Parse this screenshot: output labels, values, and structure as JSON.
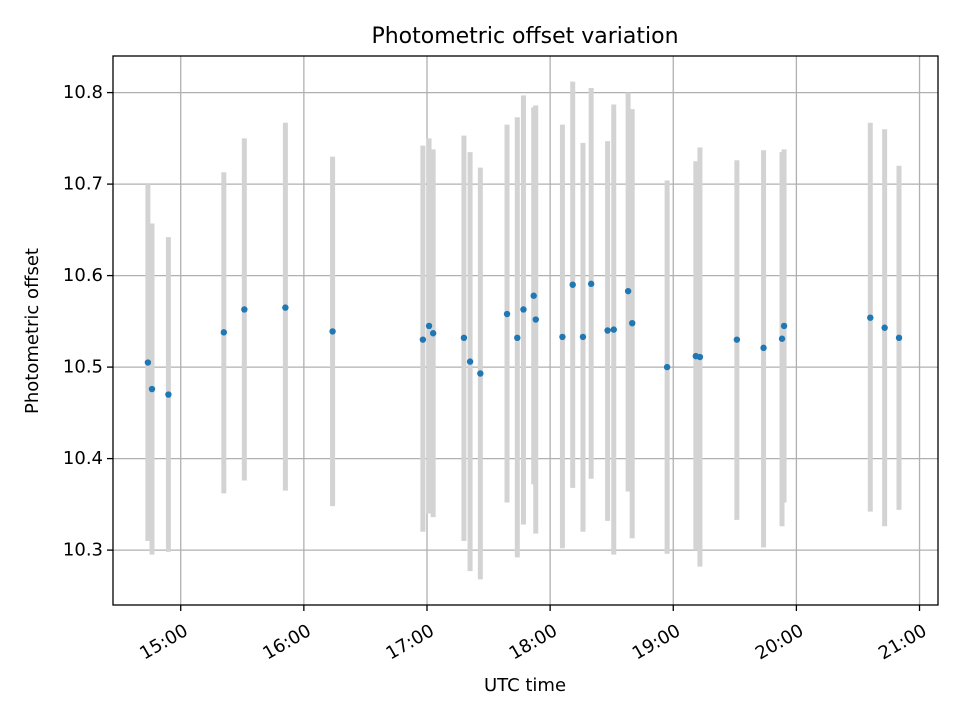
{
  "chart_data": {
    "type": "scatter",
    "title": "Photometric offset variation",
    "xlabel": "UTC time",
    "ylabel": "Photometric offset",
    "xlim": [
      "14:27",
      "21:09"
    ],
    "ylim": [
      10.24,
      10.84
    ],
    "x_ticks": [
      "15:00",
      "16:00",
      "17:00",
      "18:00",
      "19:00",
      "20:00",
      "21:00"
    ],
    "y_ticks": [
      10.3,
      10.4,
      10.5,
      10.6,
      10.7,
      10.8
    ],
    "grid": true,
    "marker_color": "#1f77b4",
    "errorbar_color": "#d3d3d3",
    "points": [
      {
        "x": "14:44",
        "y": 10.505,
        "err_low": 10.31,
        "err_high": 10.7
      },
      {
        "x": "14:46",
        "y": 10.476,
        "err_low": 10.295,
        "err_high": 10.657
      },
      {
        "x": "14:54",
        "y": 10.47,
        "err_low": 10.298,
        "err_high": 10.642
      },
      {
        "x": "15:21",
        "y": 10.538,
        "err_low": 10.362,
        "err_high": 10.713
      },
      {
        "x": "15:31",
        "y": 10.563,
        "err_low": 10.376,
        "err_high": 10.75
      },
      {
        "x": "15:51",
        "y": 10.565,
        "err_low": 10.365,
        "err_high": 10.767
      },
      {
        "x": "16:14",
        "y": 10.539,
        "err_low": 10.348,
        "err_high": 10.73
      },
      {
        "x": "16:58",
        "y": 10.53,
        "err_low": 10.32,
        "err_high": 10.742
      },
      {
        "x": "17:01",
        "y": 10.545,
        "err_low": 10.34,
        "err_high": 10.75
      },
      {
        "x": "17:03",
        "y": 10.537,
        "err_low": 10.336,
        "err_high": 10.738
      },
      {
        "x": "17:18",
        "y": 10.532,
        "err_low": 10.31,
        "err_high": 10.753
      },
      {
        "x": "17:21",
        "y": 10.506,
        "err_low": 10.277,
        "err_high": 10.735
      },
      {
        "x": "17:26",
        "y": 10.493,
        "err_low": 10.268,
        "err_high": 10.718
      },
      {
        "x": "17:39",
        "y": 10.558,
        "err_low": 10.352,
        "err_high": 10.765
      },
      {
        "x": "17:44",
        "y": 10.532,
        "err_low": 10.292,
        "err_high": 10.773
      },
      {
        "x": "17:47",
        "y": 10.563,
        "err_low": 10.328,
        "err_high": 10.797
      },
      {
        "x": "17:52",
        "y": 10.578,
        "err_low": 10.372,
        "err_high": 10.784
      },
      {
        "x": "17:53",
        "y": 10.552,
        "err_low": 10.318,
        "err_high": 10.786
      },
      {
        "x": "18:06",
        "y": 10.533,
        "err_low": 10.302,
        "err_high": 10.765
      },
      {
        "x": "18:11",
        "y": 10.59,
        "err_low": 10.368,
        "err_high": 10.812
      },
      {
        "x": "18:16",
        "y": 10.533,
        "err_low": 10.32,
        "err_high": 10.745
      },
      {
        "x": "18:20",
        "y": 10.591,
        "err_low": 10.378,
        "err_high": 10.805
      },
      {
        "x": "18:28",
        "y": 10.54,
        "err_low": 10.332,
        "err_high": 10.747
      },
      {
        "x": "18:31",
        "y": 10.541,
        "err_low": 10.295,
        "err_high": 10.787
      },
      {
        "x": "18:38",
        "y": 10.583,
        "err_low": 10.364,
        "err_high": 10.8
      },
      {
        "x": "18:40",
        "y": 10.548,
        "err_low": 10.313,
        "err_high": 10.782
      },
      {
        "x": "18:57",
        "y": 10.5,
        "err_low": 10.296,
        "err_high": 10.704
      },
      {
        "x": "19:11",
        "y": 10.512,
        "err_low": 10.3,
        "err_high": 10.725
      },
      {
        "x": "19:13",
        "y": 10.511,
        "err_low": 10.282,
        "err_high": 10.74
      },
      {
        "x": "19:31",
        "y": 10.53,
        "err_low": 10.333,
        "err_high": 10.726
      },
      {
        "x": "19:44",
        "y": 10.521,
        "err_low": 10.303,
        "err_high": 10.737
      },
      {
        "x": "19:53",
        "y": 10.531,
        "err_low": 10.326,
        "err_high": 10.735
      },
      {
        "x": "19:54",
        "y": 10.545,
        "err_low": 10.352,
        "err_high": 10.738
      },
      {
        "x": "20:36",
        "y": 10.554,
        "err_low": 10.342,
        "err_high": 10.767
      },
      {
        "x": "20:43",
        "y": 10.543,
        "err_low": 10.326,
        "err_high": 10.76
      },
      {
        "x": "20:50",
        "y": 10.532,
        "err_low": 10.344,
        "err_high": 10.72
      }
    ]
  }
}
